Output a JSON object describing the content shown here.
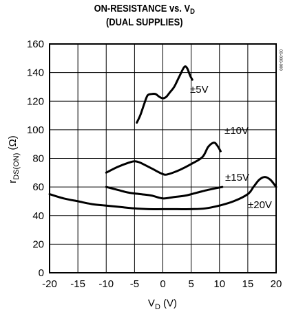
{
  "chart_data": {
    "type": "line",
    "title": {
      "main": "ON-RESISTANCE vs. V",
      "main_sub": "D",
      "line2": "(DUAL SUPPLIES)"
    },
    "xlabel": {
      "main": "V",
      "sub": "D",
      "unit": " (V)"
    },
    "ylabel": {
      "main": "r",
      "sub": "DS(ON)",
      "unit": " (Ω)"
    },
    "xlim": [
      -20,
      20
    ],
    "ylim": [
      0,
      160
    ],
    "xticks": [
      "-20",
      "-15",
      "-10",
      "-5",
      "0",
      "5",
      "10",
      "15",
      "20"
    ],
    "yticks": [
      "0",
      "20",
      "40",
      "60",
      "80",
      "100",
      "120",
      "140",
      "160"
    ],
    "grid": true,
    "series": [
      {
        "name": "±5V",
        "x": [
          -4.6,
          -4.0,
          -3.3,
          -2.7,
          -2.0,
          -1.3,
          -0.6,
          0.0,
          0.6,
          1.2,
          2.0,
          3.0,
          3.8,
          4.3,
          4.8,
          5.2
        ],
        "y": [
          105,
          110,
          118,
          124,
          125,
          125,
          123,
          122,
          123,
          126,
          130,
          138,
          144,
          143,
          138,
          135
        ]
      },
      {
        "name": "±10V",
        "x": [
          -10,
          -8,
          -6,
          -5,
          -4,
          -2,
          0,
          1,
          3,
          5,
          7,
          8,
          9,
          9.6,
          10.2
        ],
        "y": [
          70,
          74,
          77,
          78,
          77,
          73,
          69,
          69,
          72,
          76,
          81,
          88,
          91,
          89,
          85
        ]
      },
      {
        "name": "±15V",
        "x": [
          -10,
          -8,
          -6,
          -4,
          -2,
          0,
          2,
          4,
          6,
          8,
          10.5
        ],
        "y": [
          60,
          58,
          56,
          55,
          54,
          52,
          53,
          54,
          56,
          58,
          60
        ]
      },
      {
        "name": "±20V",
        "x": [
          -20,
          -17.5,
          -15,
          -12.5,
          -10,
          -7.5,
          -5,
          -2.5,
          0,
          2.5,
          5,
          7.5,
          10,
          12.5,
          15,
          16,
          17,
          18,
          19,
          20
        ],
        "y": [
          55,
          52,
          50,
          48,
          47,
          46,
          45,
          44.5,
          44.5,
          44.5,
          44.5,
          45,
          47,
          50,
          55,
          60,
          65,
          67,
          65,
          60
        ]
      }
    ],
    "curve_labels": [
      "±5V",
      "±10V",
      "±15V",
      "±20V"
    ],
    "watermark": "00-000-000"
  }
}
